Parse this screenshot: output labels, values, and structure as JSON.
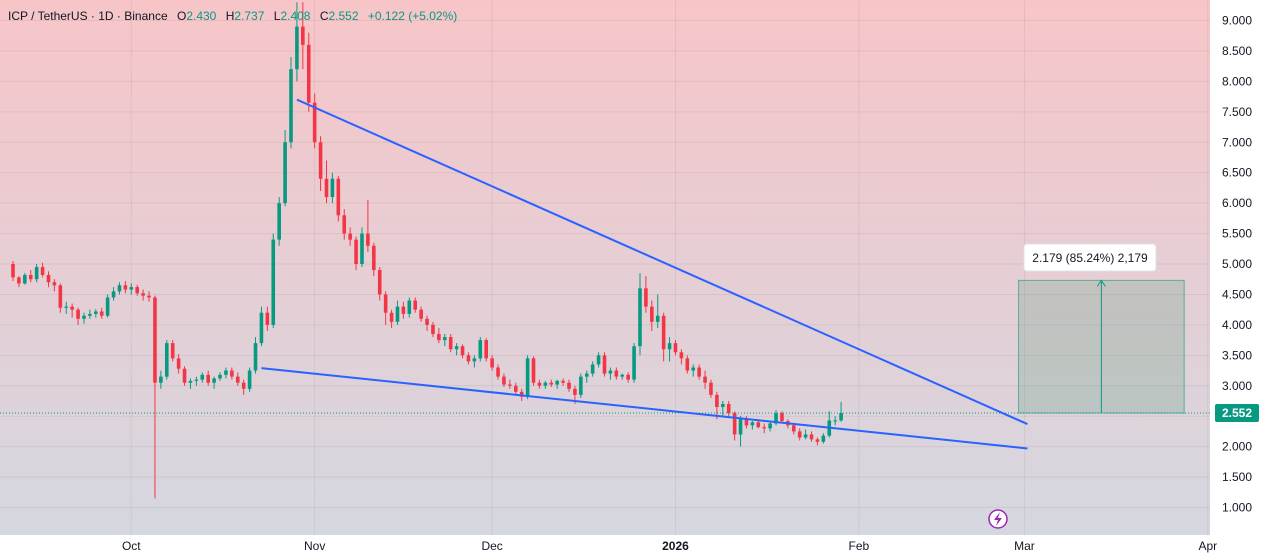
{
  "legend": {
    "symbol": "ICP / TetherUS · 1D · Binance",
    "o_label": "O",
    "o_value": "2.430",
    "h_label": "H",
    "h_value": "2.737",
    "l_label": "L",
    "l_value": "2.408",
    "c_label": "C",
    "c_value": "2.552",
    "change": "+0.122 (+5.02%)"
  },
  "price_badge": "2.552",
  "measure_label": "2.179 (85.24%) 2,179",
  "colors": {
    "up": "#089981",
    "down": "#f23645",
    "trendline": "#2962ff",
    "measure_fill": "#3d8f6a",
    "measure_line": "#089981",
    "bg_top": "#f7c5c8",
    "bg_bottom": "#d5d7e0"
  },
  "chart_data": {
    "type": "candlestick",
    "ylim": [
      0.8,
      9.3
    ],
    "y_ticks": [
      "9.000",
      "8.500",
      "8.000",
      "7.500",
      "7.000",
      "6.500",
      "6.000",
      "5.500",
      "5.000",
      "4.500",
      "4.000",
      "3.500",
      "3.000",
      "2.500",
      "2.000",
      "1.500",
      "1.000"
    ],
    "x_ticks": [
      {
        "label": "Oct",
        "day": 20
      },
      {
        "label": "Nov",
        "day": 51
      },
      {
        "label": "Dec",
        "day": 81
      },
      {
        "label": "2026",
        "day": 112
      },
      {
        "label": "Feb",
        "day": 143
      },
      {
        "label": "Mar",
        "day": 171
      },
      {
        "label": "Apr",
        "day": 202
      }
    ],
    "x_start_day": 0,
    "current_price": 2.552,
    "ohlc": [
      [
        5.0,
        5.05,
        4.72,
        4.78
      ],
      [
        4.78,
        4.8,
        4.62,
        4.68
      ],
      [
        4.68,
        4.85,
        4.66,
        4.82
      ],
      [
        4.82,
        4.9,
        4.7,
        4.75
      ],
      [
        4.75,
        5.0,
        4.7,
        4.95
      ],
      [
        4.95,
        5.02,
        4.78,
        4.82
      ],
      [
        4.82,
        4.88,
        4.62,
        4.7
      ],
      [
        4.7,
        4.75,
        4.55,
        4.65
      ],
      [
        4.65,
        4.68,
        4.2,
        4.28
      ],
      [
        4.28,
        4.38,
        4.18,
        4.3
      ],
      [
        4.3,
        4.35,
        4.12,
        4.25
      ],
      [
        4.25,
        4.28,
        4.0,
        4.1
      ],
      [
        4.1,
        4.2,
        4.02,
        4.15
      ],
      [
        4.15,
        4.25,
        4.1,
        4.18
      ],
      [
        4.18,
        4.26,
        4.12,
        4.22
      ],
      [
        4.22,
        4.28,
        4.1,
        4.15
      ],
      [
        4.15,
        4.5,
        4.12,
        4.45
      ],
      [
        4.45,
        4.62,
        4.4,
        4.55
      ],
      [
        4.55,
        4.7,
        4.5,
        4.65
      ],
      [
        4.65,
        4.72,
        4.52,
        4.58
      ],
      [
        4.58,
        4.68,
        4.5,
        4.62
      ],
      [
        4.62,
        4.66,
        4.48,
        4.52
      ],
      [
        4.52,
        4.58,
        4.4,
        4.48
      ],
      [
        4.48,
        4.55,
        4.38,
        4.45
      ],
      [
        4.45,
        4.48,
        1.15,
        3.05
      ],
      [
        3.05,
        3.25,
        2.95,
        3.15
      ],
      [
        3.15,
        3.75,
        3.1,
        3.7
      ],
      [
        3.7,
        3.75,
        3.4,
        3.45
      ],
      [
        3.45,
        3.52,
        3.2,
        3.28
      ],
      [
        3.28,
        3.32,
        3.0,
        3.05
      ],
      [
        3.05,
        3.12,
        2.95,
        3.08
      ],
      [
        3.08,
        3.15,
        3.0,
        3.1
      ],
      [
        3.1,
        3.22,
        3.05,
        3.18
      ],
      [
        3.18,
        3.25,
        3.0,
        3.05
      ],
      [
        3.05,
        3.15,
        2.95,
        3.12
      ],
      [
        3.12,
        3.22,
        3.08,
        3.18
      ],
      [
        3.18,
        3.3,
        3.12,
        3.25
      ],
      [
        3.25,
        3.3,
        3.1,
        3.15
      ],
      [
        3.15,
        3.22,
        3.0,
        3.05
      ],
      [
        3.05,
        3.1,
        2.85,
        2.95
      ],
      [
        2.95,
        3.3,
        2.9,
        3.25
      ],
      [
        3.25,
        3.8,
        3.2,
        3.7
      ],
      [
        3.7,
        4.3,
        3.65,
        4.2
      ],
      [
        4.2,
        4.3,
        3.9,
        4.0
      ],
      [
        4.0,
        5.5,
        3.95,
        5.4
      ],
      [
        5.4,
        6.1,
        5.3,
        6.0
      ],
      [
        6.0,
        7.2,
        5.95,
        7.0
      ],
      [
        7.0,
        8.4,
        6.9,
        8.2
      ],
      [
        8.2,
        9.3,
        8.0,
        8.9
      ],
      [
        8.9,
        9.3,
        8.2,
        8.6
      ],
      [
        8.6,
        8.8,
        7.5,
        7.65
      ],
      [
        7.65,
        7.8,
        6.9,
        7.0
      ],
      [
        7.0,
        7.1,
        6.2,
        6.4
      ],
      [
        6.4,
        6.7,
        6.0,
        6.1
      ],
      [
        6.1,
        6.5,
        6.0,
        6.4
      ],
      [
        6.4,
        6.45,
        5.7,
        5.8
      ],
      [
        5.8,
        5.9,
        5.4,
        5.5
      ],
      [
        5.5,
        5.6,
        5.3,
        5.4
      ],
      [
        5.4,
        5.45,
        4.9,
        5.0
      ],
      [
        5.0,
        5.6,
        4.95,
        5.5
      ],
      [
        5.5,
        6.05,
        5.2,
        5.3
      ],
      [
        5.3,
        5.35,
        4.8,
        4.9
      ],
      [
        4.9,
        4.95,
        4.4,
        4.5
      ],
      [
        4.5,
        4.55,
        4.0,
        4.2
      ],
      [
        4.2,
        4.25,
        3.95,
        4.05
      ],
      [
        4.05,
        4.4,
        4.0,
        4.3
      ],
      [
        4.3,
        4.38,
        4.1,
        4.18
      ],
      [
        4.18,
        4.45,
        4.12,
        4.4
      ],
      [
        4.4,
        4.45,
        4.2,
        4.25
      ],
      [
        4.25,
        4.3,
        4.05,
        4.1
      ],
      [
        4.1,
        4.15,
        3.9,
        4.0
      ],
      [
        4.0,
        4.05,
        3.8,
        3.85
      ],
      [
        3.85,
        3.95,
        3.7,
        3.75
      ],
      [
        3.75,
        3.85,
        3.65,
        3.8
      ],
      [
        3.8,
        3.85,
        3.55,
        3.6
      ],
      [
        3.6,
        3.7,
        3.5,
        3.65
      ],
      [
        3.65,
        3.68,
        3.45,
        3.5
      ],
      [
        3.5,
        3.55,
        3.35,
        3.4
      ],
      [
        3.4,
        3.5,
        3.3,
        3.45
      ],
      [
        3.45,
        3.8,
        3.4,
        3.75
      ],
      [
        3.75,
        3.78,
        3.4,
        3.45
      ],
      [
        3.45,
        3.5,
        3.25,
        3.3
      ],
      [
        3.3,
        3.35,
        3.1,
        3.15
      ],
      [
        3.15,
        3.2,
        2.98,
        3.02
      ],
      [
        3.02,
        3.1,
        2.95,
        3.0
      ],
      [
        3.0,
        3.05,
        2.85,
        2.9
      ],
      [
        2.9,
        2.95,
        2.75,
        2.82
      ],
      [
        2.82,
        3.5,
        2.78,
        3.45
      ],
      [
        3.45,
        3.48,
        3.0,
        3.05
      ],
      [
        3.05,
        3.1,
        2.95,
        3.0
      ],
      [
        3.0,
        3.08,
        2.95,
        3.05
      ],
      [
        3.05,
        3.1,
        2.98,
        3.02
      ],
      [
        3.02,
        3.1,
        2.95,
        3.08
      ],
      [
        3.08,
        3.12,
        3.0,
        3.05
      ],
      [
        3.05,
        3.1,
        2.9,
        2.95
      ],
      [
        2.95,
        3.0,
        2.7,
        2.85
      ],
      [
        2.85,
        3.2,
        2.8,
        3.15
      ],
      [
        3.15,
        3.25,
        3.05,
        3.2
      ],
      [
        3.2,
        3.4,
        3.15,
        3.35
      ],
      [
        3.35,
        3.55,
        3.3,
        3.5
      ],
      [
        3.5,
        3.55,
        3.15,
        3.2
      ],
      [
        3.2,
        3.3,
        3.1,
        3.25
      ],
      [
        3.25,
        3.3,
        3.1,
        3.15
      ],
      [
        3.15,
        3.2,
        3.1,
        3.18
      ],
      [
        3.18,
        3.22,
        3.05,
        3.1
      ],
      [
        3.1,
        3.7,
        3.05,
        3.65
      ],
      [
        3.65,
        4.85,
        3.5,
        4.6
      ],
      [
        4.6,
        4.8,
        4.2,
        4.3
      ],
      [
        4.3,
        4.4,
        3.9,
        4.05
      ],
      [
        4.05,
        4.5,
        3.95,
        4.15
      ],
      [
        4.15,
        4.2,
        3.4,
        3.6
      ],
      [
        3.6,
        3.8,
        3.4,
        3.7
      ],
      [
        3.7,
        3.75,
        3.5,
        3.55
      ],
      [
        3.55,
        3.6,
        3.35,
        3.45
      ],
      [
        3.45,
        3.5,
        3.2,
        3.25
      ],
      [
        3.25,
        3.35,
        3.15,
        3.3
      ],
      [
        3.3,
        3.35,
        3.1,
        3.15
      ],
      [
        3.15,
        3.25,
        2.95,
        3.05
      ],
      [
        3.05,
        3.1,
        2.8,
        2.85
      ],
      [
        2.85,
        2.9,
        2.45,
        2.65
      ],
      [
        2.65,
        2.75,
        2.5,
        2.7
      ],
      [
        2.7,
        2.75,
        2.5,
        2.55
      ],
      [
        2.55,
        2.58,
        2.1,
        2.2
      ],
      [
        2.2,
        2.5,
        2.0,
        2.45
      ],
      [
        2.45,
        2.5,
        2.3,
        2.35
      ],
      [
        2.35,
        2.42,
        2.28,
        2.4
      ],
      [
        2.4,
        2.45,
        2.3,
        2.32
      ],
      [
        2.32,
        2.38,
        2.22,
        2.3
      ],
      [
        2.3,
        2.42,
        2.25,
        2.38
      ],
      [
        2.38,
        2.6,
        2.35,
        2.55
      ],
      [
        2.55,
        2.58,
        2.38,
        2.42
      ],
      [
        2.42,
        2.45,
        2.3,
        2.35
      ],
      [
        2.35,
        2.38,
        2.2,
        2.25
      ],
      [
        2.25,
        2.3,
        2.1,
        2.15
      ],
      [
        2.15,
        2.28,
        2.12,
        2.2
      ],
      [
        2.2,
        2.25,
        2.08,
        2.12
      ],
      [
        2.12,
        2.15,
        2.02,
        2.08
      ],
      [
        2.08,
        2.22,
        2.05,
        2.18
      ],
      [
        2.18,
        2.58,
        2.15,
        2.43
      ],
      [
        2.43,
        2.5,
        2.35,
        2.43
      ],
      [
        2.43,
        2.737,
        2.408,
        2.552
      ]
    ],
    "trendlines": [
      {
        "name": "upper",
        "from": {
          "day": 48,
          "price": 7.7
        },
        "to": {
          "day": 171.5,
          "price": 2.37
        }
      },
      {
        "name": "lower",
        "from": {
          "day": 42,
          "price": 3.29
        },
        "to": {
          "day": 171.5,
          "price": 1.97
        }
      }
    ],
    "measure": {
      "from_day": 170,
      "to_day": 198,
      "low": 2.552,
      "high": 4.731
    }
  }
}
